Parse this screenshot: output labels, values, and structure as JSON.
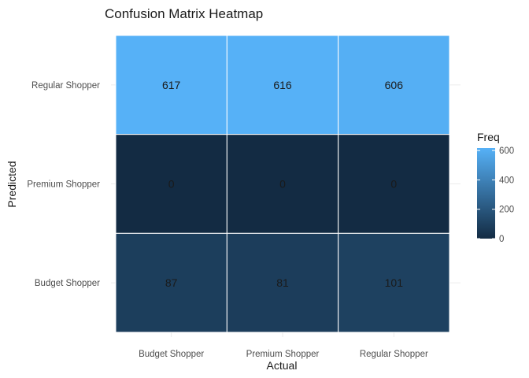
{
  "chart_data": {
    "type": "heatmap",
    "title": "Confusion Matrix Heatmap",
    "xlabel": "Actual",
    "ylabel": "Predicted",
    "x_categories": [
      "Budget Shopper",
      "Premium Shopper",
      "Regular Shopper"
    ],
    "y_categories": [
      "Budget Shopper",
      "Premium Shopper",
      "Regular Shopper"
    ],
    "cells": [
      {
        "actual": "Budget Shopper",
        "predicted": "Regular Shopper",
        "value": 617
      },
      {
        "actual": "Premium Shopper",
        "predicted": "Regular Shopper",
        "value": 616
      },
      {
        "actual": "Regular Shopper",
        "predicted": "Regular Shopper",
        "value": 606
      },
      {
        "actual": "Budget Shopper",
        "predicted": "Premium Shopper",
        "value": 0
      },
      {
        "actual": "Premium Shopper",
        "predicted": "Premium Shopper",
        "value": 0
      },
      {
        "actual": "Regular Shopper",
        "predicted": "Premium Shopper",
        "value": 0
      },
      {
        "actual": "Budget Shopper",
        "predicted": "Budget Shopper",
        "value": 87
      },
      {
        "actual": "Premium Shopper",
        "predicted": "Budget Shopper",
        "value": 81
      },
      {
        "actual": "Regular Shopper",
        "predicted": "Budget Shopper",
        "value": 101
      }
    ],
    "legend": {
      "title": "Freq",
      "ticks": [
        0,
        200,
        400,
        600
      ],
      "range": [
        0,
        617
      ],
      "color_low": "#132B43",
      "color_high": "#56B1F7",
      "placement": "right"
    },
    "grid": true
  }
}
